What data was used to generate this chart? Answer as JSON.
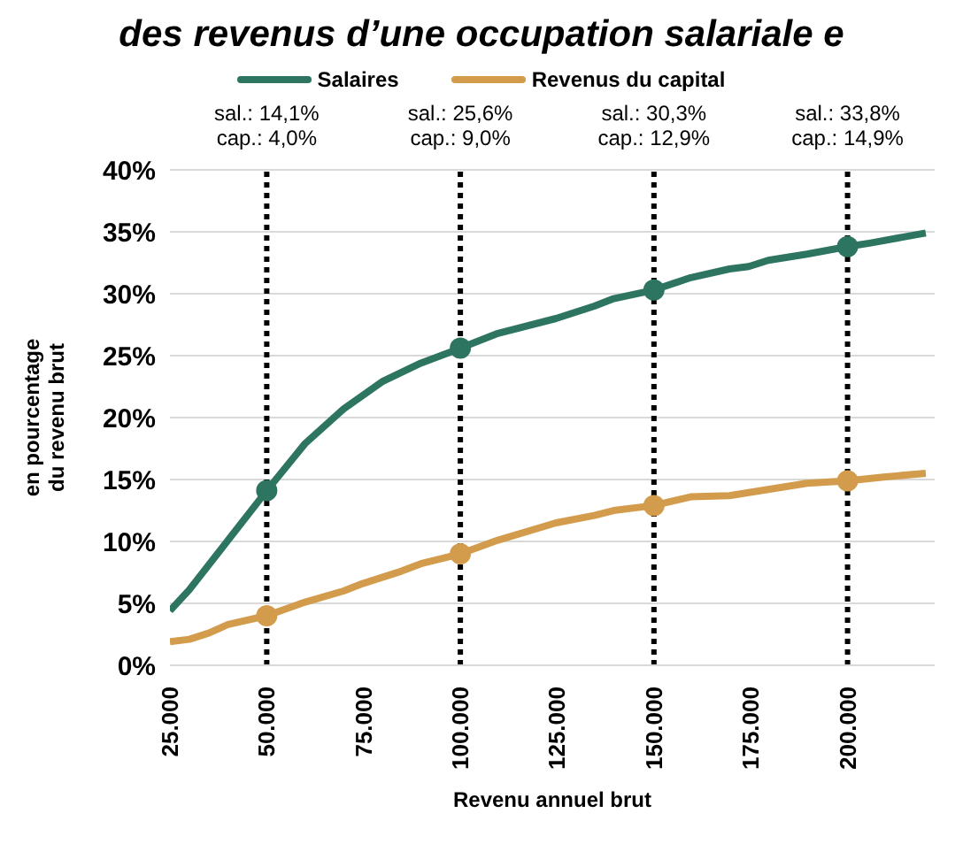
{
  "chart_data": {
    "type": "line",
    "title": "des revenus d’une occupation salariale e",
    "xlabel": "Revenu annuel brut",
    "ylabel": "en pourcentage\ndu revenu brut",
    "xlim": [
      25000,
      222500
    ],
    "xticks": [
      {
        "value": 25000,
        "label": "25.000"
      },
      {
        "value": 50000,
        "label": "50.000"
      },
      {
        "value": 75000,
        "label": "75.000"
      },
      {
        "value": 100000,
        "label": "100.000"
      },
      {
        "value": 125000,
        "label": "125.000"
      },
      {
        "value": 150000,
        "label": "150.000"
      },
      {
        "value": 175000,
        "label": "175.000"
      },
      {
        "value": 200000,
        "label": "200.000"
      }
    ],
    "ylim": [
      0,
      40
    ],
    "yticks": [
      {
        "value": 0,
        "label": "0%"
      },
      {
        "value": 5,
        "label": "5%"
      },
      {
        "value": 10,
        "label": "10%"
      },
      {
        "value": 15,
        "label": "15%"
      },
      {
        "value": 20,
        "label": "20%"
      },
      {
        "value": 25,
        "label": "25%"
      },
      {
        "value": 30,
        "label": "30%"
      },
      {
        "value": 35,
        "label": "35%"
      },
      {
        "value": 40,
        "label": "40%"
      }
    ],
    "grid": "y",
    "legend": "top",
    "series": [
      {
        "name": "Salaires",
        "color": "#2e7561",
        "x": [
          25000,
          30000,
          50000,
          59900,
          69850,
          79800,
          89800,
          100000,
          109700,
          124700,
          134600,
          139600,
          150000,
          159500,
          169500,
          174500,
          179500,
          189500,
          200000,
          206000,
          220200
        ],
        "values": [
          4.4,
          6.1,
          14.1,
          17.9,
          20.7,
          22.9,
          24.4,
          25.6,
          26.8,
          28.0,
          29.0,
          29.6,
          30.3,
          31.3,
          32.0,
          32.2,
          32.7,
          33.2,
          33.8,
          34.1,
          34.9
        ]
      },
      {
        "name": "Revenus du capital",
        "color": "#d39c4c",
        "x": [
          25000,
          30000,
          35000,
          40000,
          50000,
          59900,
          69850,
          74800,
          84800,
          89800,
          100000,
          109700,
          124700,
          134600,
          139600,
          150000,
          159500,
          169500,
          179500,
          189500,
          200000,
          209300,
          220200
        ],
        "values": [
          1.9,
          2.1,
          2.6,
          3.3,
          4.0,
          5.1,
          6.0,
          6.6,
          7.6,
          8.2,
          9.0,
          10.1,
          11.5,
          12.1,
          12.5,
          12.9,
          13.6,
          13.7,
          14.2,
          14.7,
          14.9,
          15.2,
          15.5
        ]
      },
      {
        "color": "#2e7561",
        "type": "scatter",
        "marker": "circle",
        "x": [
          50000,
          100000,
          150000,
          200000
        ],
        "values": [
          14.1,
          25.6,
          30.3,
          33.8
        ]
      },
      {
        "color": "#d39c4c",
        "type": "scatter",
        "marker": "circle",
        "x": [
          50000,
          100000,
          150000,
          200000
        ],
        "values": [
          4.0,
          9.0,
          12.9,
          14.9
        ]
      }
    ],
    "ref_lines": [
      {
        "axis": "x",
        "value": 50000,
        "color": "#000000",
        "line_style": "dotted"
      },
      {
        "axis": "x",
        "value": 100000,
        "color": "#000000",
        "line_style": "dotted"
      },
      {
        "axis": "x",
        "value": 150000,
        "color": "#000000",
        "line_style": "dotted"
      },
      {
        "axis": "x",
        "value": 200000,
        "color": "#000000",
        "line_style": "dotted"
      }
    ],
    "annotations": [
      "sal.: 14,1%\ncap.: 4,0%",
      "sal.: 25,6%\ncap.: 9,0%",
      "sal.: 30,3%\ncap.: 12,9%",
      "sal.: 33,8%\ncap.: 14,9%"
    ]
  }
}
